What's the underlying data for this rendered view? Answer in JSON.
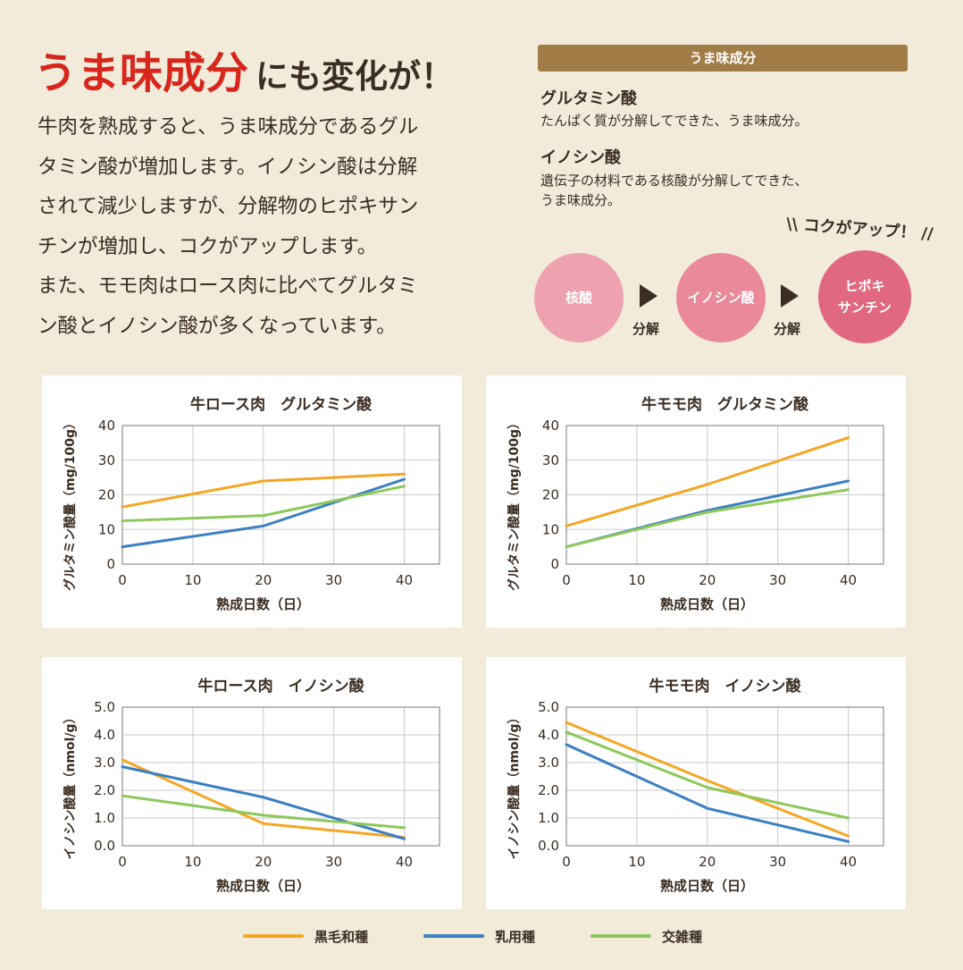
{
  "header": {
    "title_highlight": "うま味成分",
    "title_rest": "にも変化が！",
    "body_lines": [
      "牛肉を熟成すると、うま味成分であるグル",
      "タミン酸が増加します。イノシン酸は分解",
      "されて減少しますが、分解物のヒポキサン",
      "チンが増加し、コクがアップします。",
      "また、モモ肉はロース肉に比べてグルタミ",
      "ン酸とイノシン酸が多くなっています。"
    ]
  },
  "sidebar": {
    "header": "うま味成分",
    "glutamic_term": "グルタミン酸",
    "glutamic_desc": "たんぱく質が分解してできた、うま味成分。",
    "inosinic_term": "イノシン酸",
    "inosinic_desc_lines": [
      "遺伝子の材料である核酸が分解してできた、",
      "うま味成分。"
    ],
    "koku_callout": "\\\\ コクがアップ！ //",
    "flow": {
      "step1": "核酸",
      "step2": "イノシン酸",
      "step3_lines": [
        "ヒポキ",
        "サンチン"
      ],
      "arrow_label": "分解"
    }
  },
  "colors": {
    "kuroge": "#f5a623",
    "nyuyo": "#3b7fc4",
    "kozatsu": "#8dc85a",
    "accent_red": "#d9261c",
    "header_brown": "#a27c46",
    "circle1": "#eea1ae",
    "circle2": "#e9899a",
    "circle3": "#e06880"
  },
  "legend": [
    {
      "name": "黒毛和種",
      "color": "#f5a623"
    },
    {
      "name": "乳用種",
      "color": "#3b7fc4"
    },
    {
      "name": "交雑種",
      "color": "#8dc85a"
    }
  ],
  "chart_data": [
    {
      "type": "line",
      "title": "牛ロース肉　グルタミン酸",
      "xlabel": "熟成日数（日）",
      "ylabel": "グルタミン酸量（mg/100g）",
      "xlim": [
        0,
        45
      ],
      "ylim": [
        0,
        40
      ],
      "xticks": [
        0,
        10,
        20,
        30,
        40
      ],
      "yticks": [
        0,
        10,
        20,
        30,
        40
      ],
      "ytick_labels": [
        "0",
        "10",
        "20",
        "30",
        "40"
      ],
      "grid": true,
      "x": [
        0,
        20,
        40
      ],
      "series": [
        {
          "name": "黒毛和種",
          "values": [
            16.5,
            24,
            26
          ]
        },
        {
          "name": "乳用種",
          "values": [
            5,
            11,
            24.5
          ]
        },
        {
          "name": "交雑種",
          "values": [
            12.5,
            14,
            22.5
          ]
        }
      ]
    },
    {
      "type": "line",
      "title": "牛モモ肉　グルタミン酸",
      "xlabel": "熟成日数（日）",
      "ylabel": "グルタミン酸量（mg/100g）",
      "xlim": [
        0,
        45
      ],
      "ylim": [
        0,
        40
      ],
      "xticks": [
        0,
        10,
        20,
        30,
        40
      ],
      "yticks": [
        0,
        10,
        20,
        30,
        40
      ],
      "ytick_labels": [
        "0",
        "10",
        "20",
        "30",
        "40"
      ],
      "grid": true,
      "x": [
        0,
        20,
        40
      ],
      "series": [
        {
          "name": "黒毛和種",
          "values": [
            11,
            23,
            36.5
          ]
        },
        {
          "name": "乳用種",
          "values": [
            5,
            15.5,
            24
          ]
        },
        {
          "name": "交雑種",
          "values": [
            5,
            15,
            21.5
          ]
        }
      ]
    },
    {
      "type": "line",
      "title": "牛ロース肉　イノシン酸",
      "xlabel": "熟成日数（日）",
      "ylabel": "イノシン酸量（nmol/g）",
      "xlim": [
        0,
        45
      ],
      "ylim": [
        0,
        5
      ],
      "xticks": [
        0,
        10,
        20,
        30,
        40
      ],
      "yticks": [
        0,
        1,
        2,
        3,
        4,
        5
      ],
      "ytick_labels": [
        "0.0",
        "1.0",
        "2.0",
        "3.0",
        "4.0",
        "5.0"
      ],
      "grid": true,
      "x": [
        0,
        20,
        40
      ],
      "series": [
        {
          "name": "黒毛和種",
          "values": [
            3.1,
            0.8,
            0.3
          ]
        },
        {
          "name": "乳用種",
          "values": [
            2.85,
            1.75,
            0.25
          ]
        },
        {
          "name": "交雑種",
          "values": [
            1.8,
            1.1,
            0.65
          ]
        }
      ]
    },
    {
      "type": "line",
      "title": "牛モモ肉　イノシン酸",
      "xlabel": "熟成日数（日）",
      "ylabel": "イノシン酸量（nmol/g）",
      "xlim": [
        0,
        45
      ],
      "ylim": [
        0,
        5
      ],
      "xticks": [
        0,
        10,
        20,
        30,
        40
      ],
      "yticks": [
        0,
        1,
        2,
        3,
        4,
        5
      ],
      "ytick_labels": [
        "0.0",
        "1.0",
        "2.0",
        "3.0",
        "4.0",
        "5.0"
      ],
      "grid": true,
      "x": [
        0,
        20,
        40
      ],
      "series": [
        {
          "name": "黒毛和種",
          "values": [
            4.45,
            2.35,
            0.35
          ]
        },
        {
          "name": "乳用種",
          "values": [
            3.65,
            1.35,
            0.15
          ]
        },
        {
          "name": "交雑種",
          "values": [
            4.1,
            2.1,
            1.0
          ]
        }
      ]
    }
  ]
}
